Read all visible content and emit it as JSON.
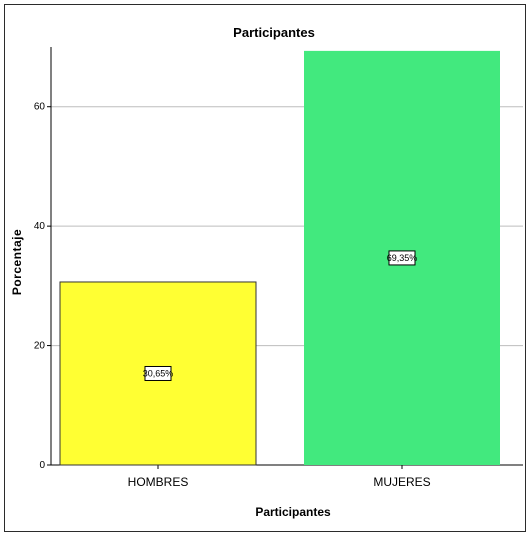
{
  "chart_data": {
    "type": "bar",
    "title": "Participantes",
    "xlabel": "Participantes",
    "ylabel": "Porcentaje",
    "categories": [
      "HOMBRES",
      "MUJERES"
    ],
    "values": [
      30.65,
      69.35
    ],
    "data_labels": [
      "30,65%",
      "69,35%"
    ],
    "colors": [
      "#ffff33",
      "#42e97e"
    ],
    "ylim": [
      0,
      70
    ],
    "yticks": [
      0,
      20,
      40,
      60
    ],
    "grid": true,
    "legend": "none"
  }
}
